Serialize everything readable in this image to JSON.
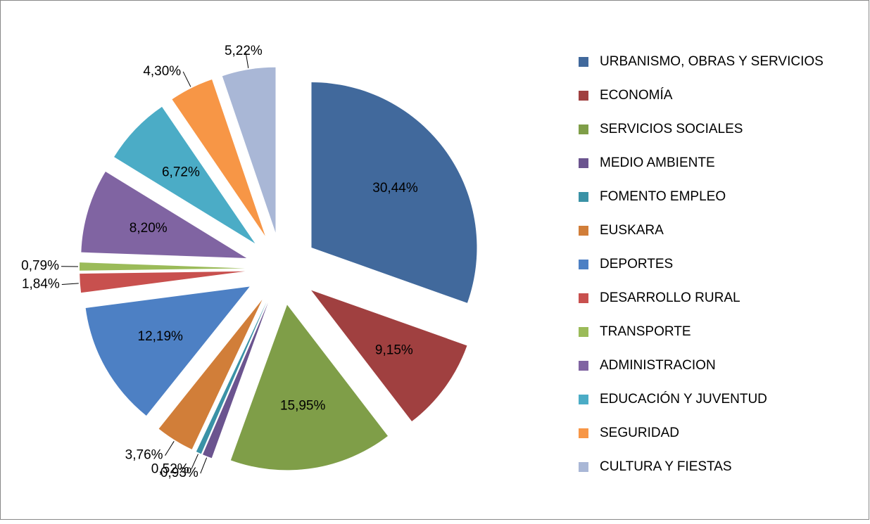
{
  "chart_data": {
    "type": "pie",
    "categories": [
      "URBANISMO, OBRAS Y SERVICIOS",
      "ECONOMÍA",
      "SERVICIOS SOCIALES",
      "MEDIO AMBIENTE",
      "FOMENTO EMPLEO",
      "EUSKARA",
      "DEPORTES",
      "DESARROLLO RURAL",
      "TRANSPORTE",
      "ADMINISTRACION",
      "EDUCACIÓN Y JUVENTUD",
      "SEGURIDAD",
      "CULTURA Y FIESTAS"
    ],
    "values": [
      30.44,
      9.15,
      15.95,
      0.93,
      0.52,
      3.76,
      12.19,
      1.84,
      0.79,
      8.2,
      6.72,
      4.3,
      5.22
    ],
    "value_labels": [
      "30,44%",
      "9,15%",
      "15,95%",
      "0,93%",
      "0,52%",
      "3,76%",
      "12,19%",
      "1,84%",
      "0,79%",
      "8,20%",
      "6,72%",
      "4,30%",
      "5,22%"
    ],
    "colors": [
      "#41699c",
      "#a04040",
      "#7f9e48",
      "#6b548f",
      "#3a92a6",
      "#d17e39",
      "#4d80c4",
      "#c8504e",
      "#9bbb59",
      "#8064a2",
      "#4bacc6",
      "#f79646",
      "#a9b7d6"
    ]
  }
}
